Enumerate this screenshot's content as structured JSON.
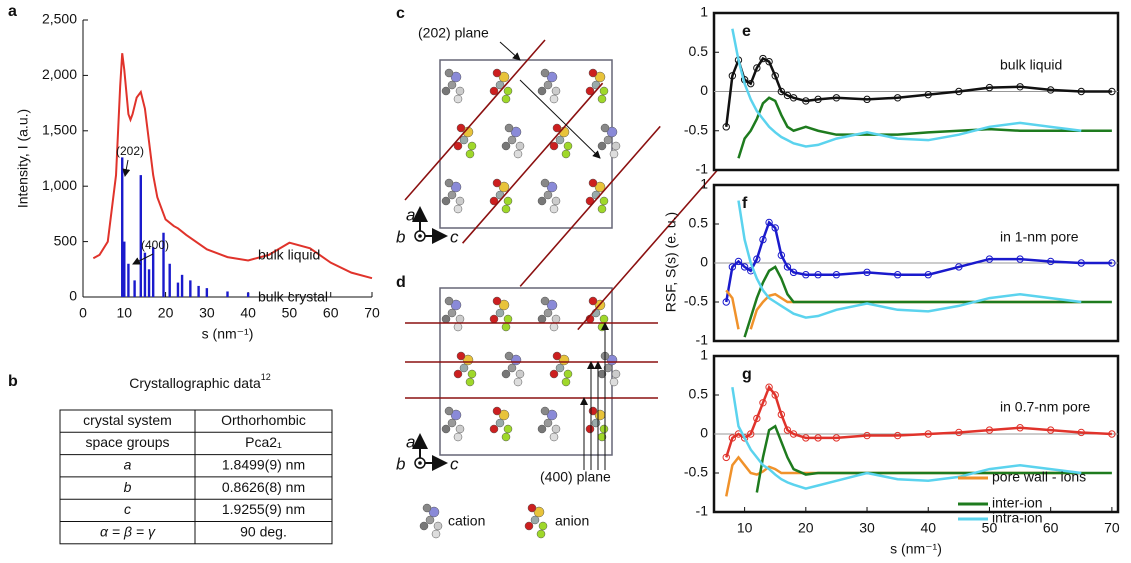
{
  "chart_data": [
    {
      "panel": "a",
      "type": "combo",
      "xlabel": "s (nm⁻¹)",
      "ylabel": "Intensity, I (a.u.)",
      "xlim": [
        0,
        70
      ],
      "xticks": [
        0,
        10,
        20,
        30,
        40,
        50,
        60,
        70
      ],
      "ylim": [
        0,
        2500
      ],
      "yticks": [
        0,
        500,
        {
          "value": 1000,
          "label": "1,000"
        },
        {
          "value": 1500,
          "label": "1,500"
        },
        {
          "value": 2000,
          "label": "2,000"
        },
        {
          "value": 2500,
          "label": "2,500"
        }
      ],
      "series": [
        {
          "name": "bulk liquid",
          "kind": "line",
          "color": "#e0332b",
          "x": [
            2.5,
            4,
            6,
            8,
            9,
            9.5,
            10,
            11,
            11.5,
            12,
            13,
            14,
            15,
            16,
            17,
            18,
            20,
            22,
            23,
            25,
            30,
            35,
            40,
            45,
            50,
            55,
            60,
            65,
            70
          ],
          "values": [
            350,
            380,
            500,
            1100,
            1900,
            2200,
            2050,
            1650,
            1600,
            1650,
            1800,
            1850,
            1700,
            1400,
            1100,
            900,
            700,
            640,
            620,
            560,
            430,
            360,
            330,
            380,
            490,
            440,
            310,
            220,
            170
          ]
        },
        {
          "name": "bulk crystal",
          "kind": "bar",
          "color": "#1a1acc",
          "x": [
            9.5,
            10,
            11,
            12.5,
            14,
            15,
            16,
            17,
            19.5,
            21,
            23,
            24,
            26,
            28,
            30,
            35,
            40
          ],
          "values": [
            1260,
            500,
            300,
            150,
            1100,
            400,
            250,
            450,
            580,
            300,
            130,
            200,
            150,
            100,
            80,
            50,
            40
          ]
        }
      ],
      "annotations": [
        "(202)",
        "(400)"
      ]
    },
    {
      "panel": "e",
      "type": "line",
      "annotation": "bulk liquid",
      "xlim": [
        5,
        71
      ],
      "ylim": [
        -1,
        1
      ],
      "yticks": [
        1,
        0.5,
        0,
        -0.5,
        -1
      ],
      "zero_line": true,
      "x": [
        7,
        8,
        9,
        10,
        11,
        12,
        13,
        14,
        15,
        16,
        17,
        18,
        20,
        22,
        25,
        30,
        35,
        40,
        45,
        50,
        55,
        60,
        65,
        70
      ],
      "series": [
        {
          "color": "#111111",
          "marker": "circle",
          "values": [
            -0.45,
            0.2,
            0.4,
            0.15,
            0.1,
            0.3,
            0.42,
            0.38,
            0.2,
            0.0,
            -0.05,
            -0.08,
            -0.12,
            -0.1,
            -0.08,
            -0.1,
            -0.08,
            -0.04,
            0.0,
            0.05,
            0.06,
            0.02,
            0.0,
            0.0
          ]
        },
        {
          "color": "#1e7b1e",
          "values": [
            null,
            null,
            -0.85,
            -0.6,
            -0.5,
            -0.35,
            -0.15,
            -0.08,
            -0.12,
            -0.3,
            -0.45,
            -0.5,
            -0.45,
            -0.5,
            -0.55,
            -0.55,
            -0.55,
            -0.52,
            -0.5,
            -0.48,
            -0.5,
            -0.5,
            -0.5,
            -0.5
          ]
        },
        {
          "color": "#5bd3ee",
          "values": [
            null,
            0.8,
            0.4,
            0.1,
            -0.1,
            -0.25,
            -0.35,
            -0.45,
            -0.52,
            -0.58,
            -0.62,
            -0.66,
            -0.7,
            -0.68,
            -0.6,
            -0.52,
            -0.6,
            -0.62,
            -0.55,
            -0.45,
            -0.4,
            -0.45,
            -0.5,
            null
          ]
        }
      ]
    },
    {
      "panel": "f",
      "type": "line",
      "annotation": "in 1-nm pore",
      "xlim": [
        5,
        71
      ],
      "ylim": [
        -1,
        1
      ],
      "yticks": [
        1,
        0.5,
        0,
        -0.5,
        -1
      ],
      "zero_line": true,
      "x": [
        7,
        8,
        9,
        10,
        11,
        12,
        13,
        14,
        15,
        16,
        17,
        18,
        20,
        22,
        25,
        30,
        35,
        40,
        45,
        50,
        55,
        60,
        65,
        70
      ],
      "series": [
        {
          "color": "#1a1acc",
          "marker": "circle",
          "values": [
            -0.5,
            -0.05,
            0.02,
            -0.05,
            -0.1,
            0.05,
            0.3,
            0.52,
            0.45,
            0.1,
            -0.05,
            -0.12,
            -0.15,
            -0.15,
            -0.15,
            -0.12,
            -0.15,
            -0.15,
            -0.05,
            0.05,
            0.05,
            0.02,
            0.0,
            0.0
          ]
        },
        {
          "color": "#f0922b",
          "values": [
            -0.35,
            -0.45,
            -0.85,
            null,
            -0.85,
            -0.6,
            -0.5,
            -0.42,
            -0.4,
            -0.45,
            -0.5,
            -0.5,
            -0.5,
            -0.5,
            -0.5,
            -0.5,
            -0.5,
            -0.5,
            -0.5,
            -0.5,
            -0.5,
            -0.5,
            -0.5,
            null
          ]
        },
        {
          "color": "#1e7b1e",
          "values": [
            null,
            null,
            null,
            -0.95,
            -0.7,
            -0.45,
            -0.25,
            -0.1,
            -0.05,
            -0.2,
            -0.4,
            -0.5,
            -0.5,
            -0.5,
            -0.5,
            -0.5,
            -0.5,
            -0.5,
            -0.5,
            -0.5,
            -0.5,
            -0.5,
            -0.5,
            -0.5
          ]
        },
        {
          "color": "#5bd3ee",
          "values": [
            null,
            null,
            0.8,
            0.3,
            0.0,
            -0.2,
            -0.35,
            -0.45,
            -0.5,
            -0.55,
            -0.6,
            -0.65,
            -0.7,
            -0.68,
            -0.6,
            -0.52,
            -0.6,
            -0.62,
            -0.55,
            -0.45,
            -0.4,
            -0.45,
            -0.5,
            null
          ]
        }
      ]
    },
    {
      "panel": "g",
      "type": "line",
      "annotation": "in 0.7-nm pore",
      "xlabel": "s (nm⁻¹)",
      "ylabel": "RSF, S(s) (e. u.)",
      "xlim": [
        5,
        71
      ],
      "xticks": [
        10,
        20,
        30,
        40,
        50,
        60,
        70
      ],
      "ylim": [
        -1,
        1
      ],
      "yticks": [
        1,
        0.5,
        0,
        -0.5,
        -1
      ],
      "zero_line": true,
      "x": [
        7,
        8,
        9,
        10,
        11,
        12,
        13,
        14,
        15,
        16,
        17,
        18,
        20,
        22,
        25,
        30,
        35,
        40,
        45,
        50,
        55,
        60,
        65,
        70
      ],
      "series": [
        {
          "color": "#e0332b",
          "marker": "circle",
          "values": [
            -0.3,
            -0.05,
            0.0,
            -0.05,
            0.0,
            0.2,
            0.4,
            0.6,
            0.5,
            0.25,
            0.05,
            0.0,
            -0.05,
            -0.05,
            -0.05,
            -0.02,
            -0.02,
            0.0,
            0.02,
            0.05,
            0.08,
            0.05,
            0.02,
            0.0
          ]
        },
        {
          "name": "pore wall - ions",
          "color": "#f0922b",
          "values": [
            -0.8,
            -0.4,
            -0.3,
            -0.4,
            -0.5,
            -0.52,
            -0.48,
            -0.42,
            -0.45,
            -0.5,
            -0.5,
            -0.5,
            -0.5,
            -0.5,
            -0.5,
            -0.5,
            -0.5,
            -0.5,
            -0.5,
            -0.5,
            -0.5,
            -0.5,
            -0.5,
            null
          ]
        },
        {
          "name": "inter-ion",
          "color": "#1e7b1e",
          "values": [
            null,
            null,
            null,
            null,
            null,
            -0.75,
            -0.3,
            0.05,
            0.1,
            -0.1,
            -0.3,
            -0.45,
            -0.52,
            -0.5,
            -0.5,
            -0.5,
            -0.5,
            -0.5,
            -0.5,
            -0.5,
            -0.5,
            -0.5,
            -0.5,
            -0.5
          ]
        },
        {
          "name": "intra-ion",
          "color": "#5bd3ee",
          "values": [
            null,
            0.6,
            0.1,
            -0.05,
            -0.2,
            -0.3,
            -0.4,
            -0.45,
            -0.52,
            -0.58,
            -0.62,
            -0.65,
            -0.7,
            -0.66,
            -0.6,
            -0.5,
            -0.58,
            -0.6,
            -0.55,
            -0.45,
            -0.4,
            -0.45,
            -0.5,
            null
          ]
        }
      ]
    }
  ],
  "table": {
    "panel": "b",
    "title": "Crystallographic data",
    "title_sup": "12",
    "rows": [
      [
        "crystal system",
        "Orthorhombic"
      ],
      [
        "space groups",
        "Pca2₁"
      ],
      [
        "a",
        "1.8499(9) nm"
      ],
      [
        "b",
        "0.8626(8) nm"
      ],
      [
        "c",
        "1.9255(9) nm"
      ],
      [
        "α = β = γ",
        "90 deg."
      ]
    ]
  },
  "diagrams": {
    "c": {
      "panel": "c",
      "plane_label": "(202) plane",
      "axes": [
        "a",
        "b",
        "c"
      ]
    },
    "d": {
      "panel": "d",
      "plane_label": "(400) plane",
      "axes": [
        "a",
        "b",
        "c"
      ]
    },
    "legend": [
      "cation",
      "anion"
    ]
  }
}
